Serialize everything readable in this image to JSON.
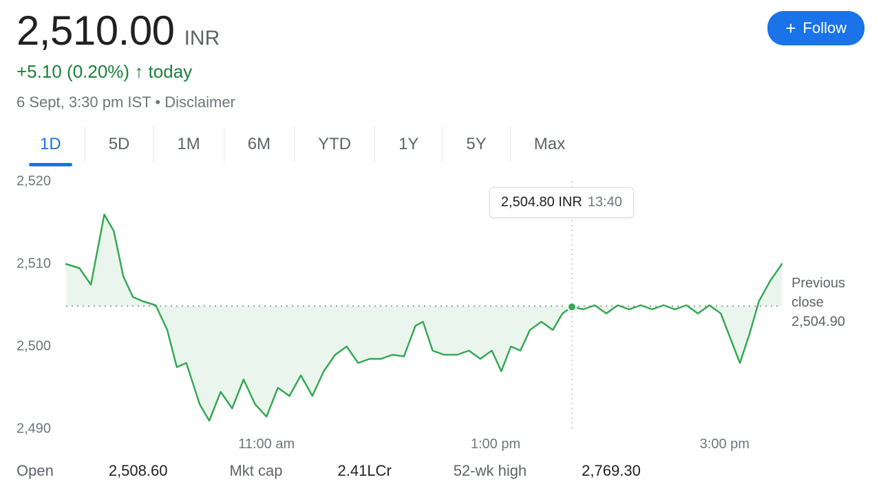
{
  "price": {
    "value": "2,510.00",
    "currency": "INR",
    "change_abs": "+5.10",
    "change_pct": "(0.20%)",
    "arrow": "↑",
    "period": "today",
    "change_color": "#188038"
  },
  "follow": {
    "label": "Follow"
  },
  "meta": {
    "timestamp": "6 Sept, 3:30 pm IST",
    "sep": " • ",
    "disclaimer": "Disclaimer"
  },
  "tabs": {
    "items": [
      "1D",
      "5D",
      "1M",
      "6M",
      "YTD",
      "1Y",
      "5Y",
      "Max"
    ],
    "active_index": 0,
    "active_color": "#1a73e8",
    "inactive_color": "#5f6368"
  },
  "chart": {
    "type": "line",
    "ymin": 2490,
    "ymax": 2520,
    "ytick_step": 10,
    "yticks": [
      "2,520",
      "2,510",
      "2,500",
      "2,490"
    ],
    "x_start_min": 555,
    "x_end_min": 930,
    "xticks": [
      {
        "label": "11:00 am",
        "min": 660
      },
      {
        "label": "1:00 pm",
        "min": 780
      },
      {
        "label": "3:00 pm",
        "min": 900
      }
    ],
    "prev_close": {
      "label": "Previous close",
      "value_text": "2,504.90",
      "value": 2504.9
    },
    "line_color": "#34a853",
    "line_width": 2.5,
    "fill_color": "rgba(52,168,83,0.10)",
    "dot_color": "#34a853",
    "grid_dotted_color": "#9aa0a6",
    "crosshair_color": "#bdc1c6",
    "background_color": "#ffffff",
    "tooltip": {
      "value": "2,504.80 INR",
      "time": "13:40",
      "at_min": 820,
      "at_val": 2504.8
    },
    "data": [
      {
        "t": 555,
        "v": 2510.0
      },
      {
        "t": 562,
        "v": 2509.5
      },
      {
        "t": 568,
        "v": 2507.5
      },
      {
        "t": 575,
        "v": 2516.0
      },
      {
        "t": 580,
        "v": 2514.0
      },
      {
        "t": 585,
        "v": 2508.5
      },
      {
        "t": 590,
        "v": 2506.0
      },
      {
        "t": 595,
        "v": 2505.5
      },
      {
        "t": 602,
        "v": 2505.0
      },
      {
        "t": 608,
        "v": 2502.0
      },
      {
        "t": 613,
        "v": 2497.5
      },
      {
        "t": 618,
        "v": 2498.0
      },
      {
        "t": 625,
        "v": 2493.0
      },
      {
        "t": 630,
        "v": 2491.0
      },
      {
        "t": 636,
        "v": 2494.5
      },
      {
        "t": 642,
        "v": 2492.5
      },
      {
        "t": 648,
        "v": 2496.0
      },
      {
        "t": 654,
        "v": 2493.0
      },
      {
        "t": 660,
        "v": 2491.5
      },
      {
        "t": 666,
        "v": 2495.0
      },
      {
        "t": 672,
        "v": 2494.0
      },
      {
        "t": 678,
        "v": 2496.5
      },
      {
        "t": 684,
        "v": 2494.0
      },
      {
        "t": 690,
        "v": 2497.0
      },
      {
        "t": 696,
        "v": 2499.0
      },
      {
        "t": 702,
        "v": 2500.0
      },
      {
        "t": 708,
        "v": 2498.0
      },
      {
        "t": 714,
        "v": 2498.5
      },
      {
        "t": 720,
        "v": 2498.5
      },
      {
        "t": 726,
        "v": 2499.0
      },
      {
        "t": 732,
        "v": 2498.8
      },
      {
        "t": 738,
        "v": 2502.5
      },
      {
        "t": 742,
        "v": 2503.0
      },
      {
        "t": 747,
        "v": 2499.5
      },
      {
        "t": 753,
        "v": 2499.0
      },
      {
        "t": 760,
        "v": 2499.0
      },
      {
        "t": 766,
        "v": 2499.5
      },
      {
        "t": 772,
        "v": 2498.5
      },
      {
        "t": 778,
        "v": 2499.5
      },
      {
        "t": 783,
        "v": 2497.0
      },
      {
        "t": 788,
        "v": 2500.0
      },
      {
        "t": 793,
        "v": 2499.5
      },
      {
        "t": 798,
        "v": 2502.0
      },
      {
        "t": 804,
        "v": 2503.0
      },
      {
        "t": 810,
        "v": 2502.0
      },
      {
        "t": 815,
        "v": 2504.0
      },
      {
        "t": 820,
        "v": 2504.8
      },
      {
        "t": 826,
        "v": 2504.5
      },
      {
        "t": 832,
        "v": 2505.0
      },
      {
        "t": 838,
        "v": 2504.0
      },
      {
        "t": 844,
        "v": 2505.0
      },
      {
        "t": 850,
        "v": 2504.5
      },
      {
        "t": 856,
        "v": 2505.0
      },
      {
        "t": 862,
        "v": 2504.5
      },
      {
        "t": 868,
        "v": 2505.0
      },
      {
        "t": 874,
        "v": 2504.5
      },
      {
        "t": 880,
        "v": 2505.0
      },
      {
        "t": 886,
        "v": 2504.0
      },
      {
        "t": 892,
        "v": 2505.0
      },
      {
        "t": 898,
        "v": 2504.0
      },
      {
        "t": 903,
        "v": 2501.0
      },
      {
        "t": 908,
        "v": 2498.0
      },
      {
        "t": 913,
        "v": 2501.5
      },
      {
        "t": 918,
        "v": 2505.5
      },
      {
        "t": 924,
        "v": 2508.0
      },
      {
        "t": 930,
        "v": 2510.0
      }
    ]
  },
  "stats": {
    "items": [
      {
        "label": "Open",
        "value": "2,508.60"
      },
      {
        "label": "Mkt cap",
        "value": "2.41LCr"
      },
      {
        "label": "52-wk high",
        "value": "2,769.30"
      }
    ]
  }
}
